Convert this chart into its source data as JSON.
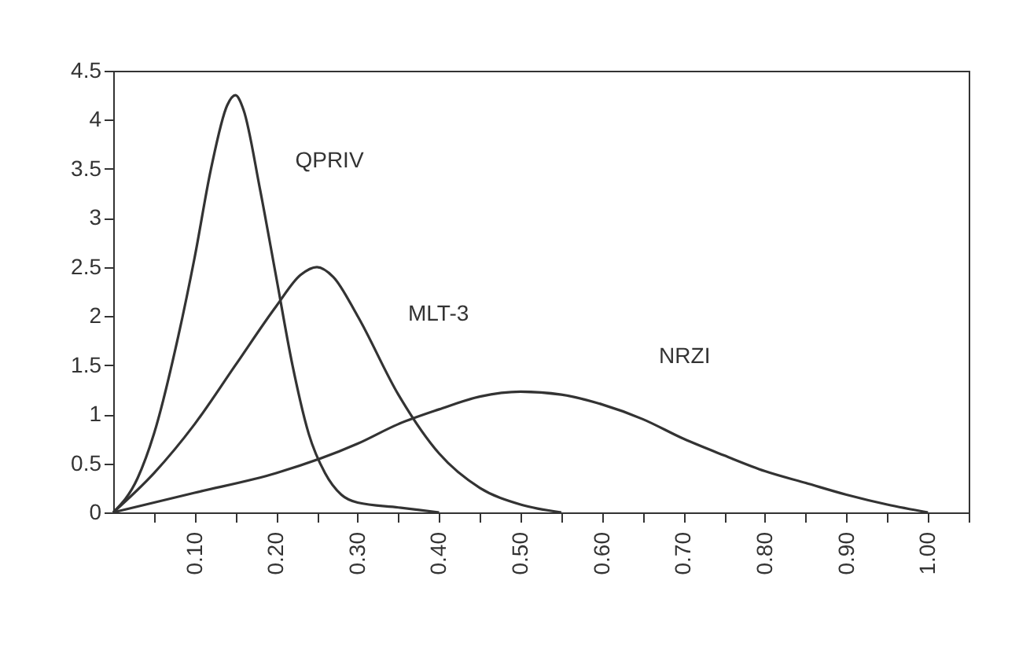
{
  "chart_data": {
    "type": "line",
    "legend": false,
    "grid": false,
    "marker": "none",
    "line_style": "solid",
    "xlim": [
      0,
      1.05
    ],
    "ylim": [
      0,
      4.5
    ],
    "xticks": [
      {
        "value": 0.05,
        "label": null
      },
      {
        "value": 0.1,
        "label": "0.10"
      },
      {
        "value": 0.15,
        "label": null
      },
      {
        "value": 0.2,
        "label": "0.20"
      },
      {
        "value": 0.25,
        "label": null
      },
      {
        "value": 0.3,
        "label": "0.30"
      },
      {
        "value": 0.35,
        "label": null
      },
      {
        "value": 0.4,
        "label": "0.40"
      },
      {
        "value": 0.45,
        "label": null
      },
      {
        "value": 0.5,
        "label": "0.50"
      },
      {
        "value": 0.55,
        "label": null
      },
      {
        "value": 0.6,
        "label": "0.60"
      },
      {
        "value": 0.65,
        "label": null
      },
      {
        "value": 0.7,
        "label": "0.70"
      },
      {
        "value": 0.75,
        "label": null
      },
      {
        "value": 0.8,
        "label": "0.80"
      },
      {
        "value": 0.85,
        "label": null
      },
      {
        "value": 0.9,
        "label": "0.90"
      },
      {
        "value": 0.95,
        "label": null
      },
      {
        "value": 1.0,
        "label": "1.00"
      },
      {
        "value": 1.05,
        "label": null
      }
    ],
    "yticks": [
      0,
      0.5,
      1,
      1.5,
      2,
      2.5,
      3,
      3.5,
      4,
      4.5
    ],
    "series": [
      {
        "name": "QPRIV",
        "color": "#333333",
        "x": [
          0,
          0.03,
          0.05,
          0.08,
          0.1,
          0.12,
          0.14,
          0.15,
          0.16,
          0.18,
          0.2,
          0.22,
          0.24,
          0.26,
          0.28,
          0.3,
          0.35,
          0.4
        ],
        "values": [
          0,
          0.35,
          0.8,
          1.8,
          2.6,
          3.5,
          4.15,
          4.25,
          4.1,
          3.3,
          2.4,
          1.5,
          0.8,
          0.4,
          0.18,
          0.1,
          0.05,
          0
        ]
      },
      {
        "name": "MLT-3",
        "color": "#333333",
        "x": [
          0,
          0.05,
          0.1,
          0.15,
          0.2,
          0.23,
          0.25,
          0.27,
          0.3,
          0.35,
          0.4,
          0.45,
          0.5,
          0.55
        ],
        "values": [
          0,
          0.4,
          0.9,
          1.5,
          2.1,
          2.42,
          2.5,
          2.4,
          2.0,
          1.2,
          0.6,
          0.25,
          0.08,
          0
        ]
      },
      {
        "name": "NRZI",
        "color": "#333333",
        "x": [
          0,
          0.1,
          0.2,
          0.3,
          0.35,
          0.4,
          0.45,
          0.5,
          0.55,
          0.6,
          0.65,
          0.7,
          0.75,
          0.8,
          0.85,
          0.9,
          0.95,
          1.0
        ],
        "values": [
          0,
          0.2,
          0.4,
          0.7,
          0.9,
          1.05,
          1.18,
          1.23,
          1.2,
          1.1,
          0.95,
          0.75,
          0.58,
          0.42,
          0.3,
          0.18,
          0.08,
          0
        ]
      }
    ]
  }
}
